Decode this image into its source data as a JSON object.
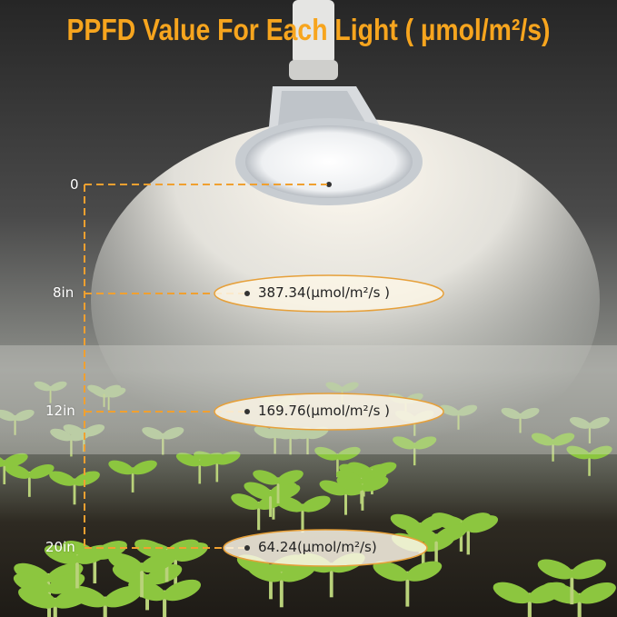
{
  "title": "PPFD Value For Each Light ( µmol/m²/s)",
  "accent_color": "#f7a51e",
  "measurements": [
    {
      "distance": "0",
      "value": ""
    },
    {
      "distance": "8in",
      "value": "387.34(µmol/m²/s )"
    },
    {
      "distance": "12in",
      "value": "169.76(µmol/m²/s )"
    },
    {
      "distance": "20in",
      "value": "64.24(µmol/m²/s)"
    }
  ],
  "image_subject": [
    "led-grow-light-bulb",
    "seedlings-tray"
  ]
}
